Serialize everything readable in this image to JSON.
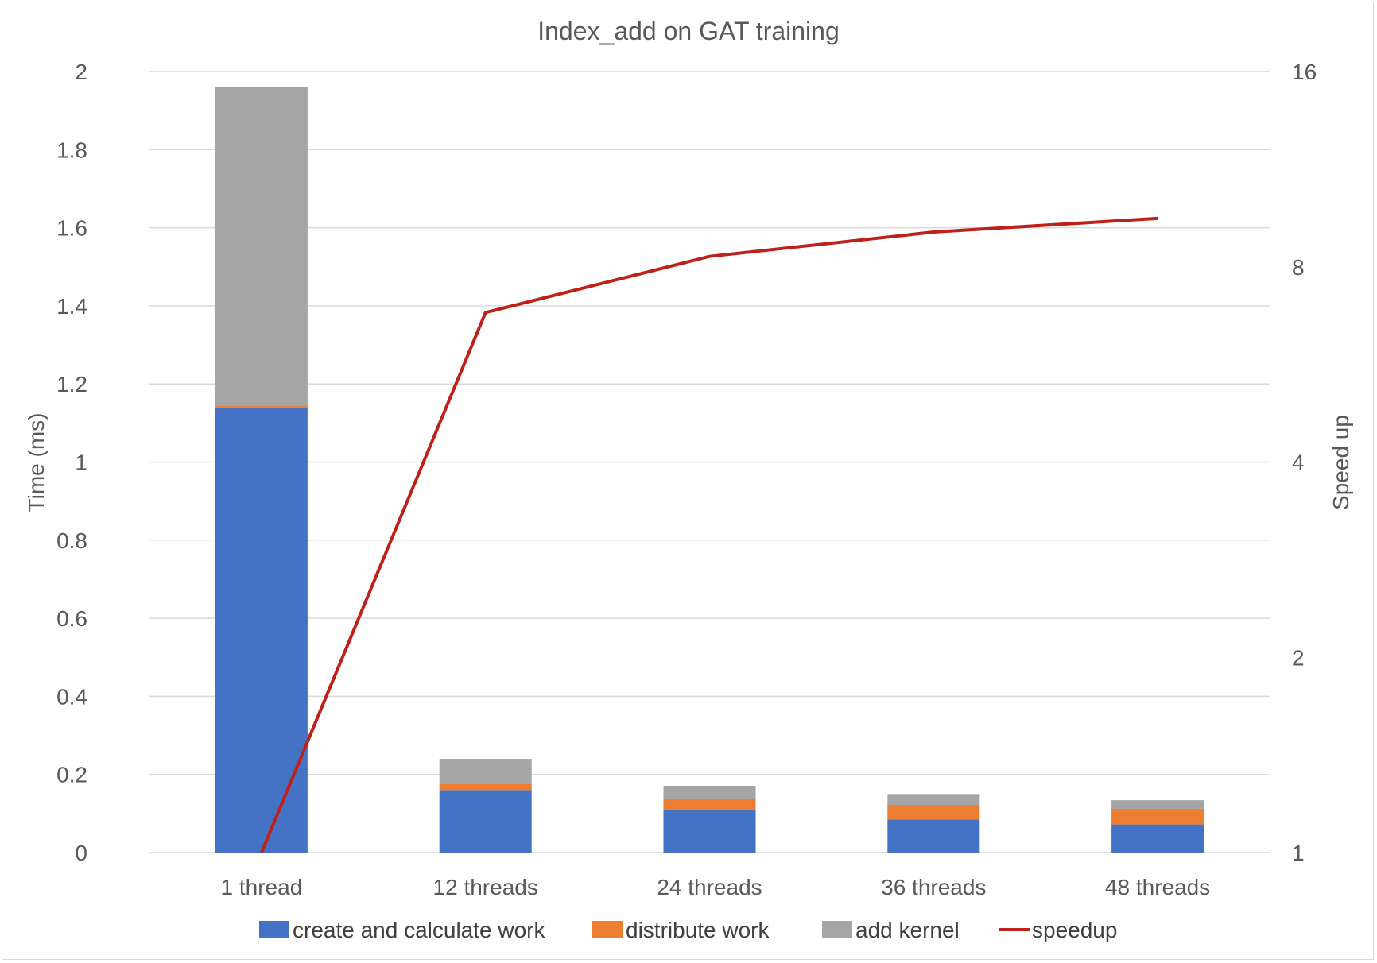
{
  "chart_data": {
    "type": "bar",
    "stacked": true,
    "title": "Index_add on GAT training",
    "ylabel": "Time (ms)",
    "y2label": "Speed up",
    "categories": [
      "1 thread",
      "12 threads",
      "24 threads",
      "36 threads",
      "48 threads"
    ],
    "ylim": [
      0,
      2
    ],
    "y_ticks": [
      "0",
      "0.2",
      "0.4",
      "0.6",
      "0.8",
      "1",
      "1.2",
      "1.4",
      "1.6",
      "1.8",
      "2"
    ],
    "y2_scale": "log2",
    "y2lim": [
      1,
      16
    ],
    "y2_ticks": [
      "1",
      "2",
      "4",
      "8",
      "16"
    ],
    "grid": true,
    "legend_position": "bottom",
    "series": [
      {
        "name": "create and calculate work",
        "kind": "bar",
        "color": "#4472C4",
        "values": [
          1.14,
          0.16,
          0.11,
          0.085,
          0.072
        ]
      },
      {
        "name": "distribute work",
        "kind": "bar",
        "color": "#ED7D31",
        "values": [
          0.005,
          0.015,
          0.028,
          0.037,
          0.04
        ]
      },
      {
        "name": "add kernel",
        "kind": "bar",
        "color": "#A5A5A5",
        "values": [
          0.815,
          0.065,
          0.033,
          0.028,
          0.022
        ]
      },
      {
        "name": "speedup",
        "kind": "line",
        "axis": "right",
        "color": "#C0201A",
        "values": [
          1,
          6.8,
          8.3,
          9.05,
          9.5
        ]
      }
    ]
  }
}
